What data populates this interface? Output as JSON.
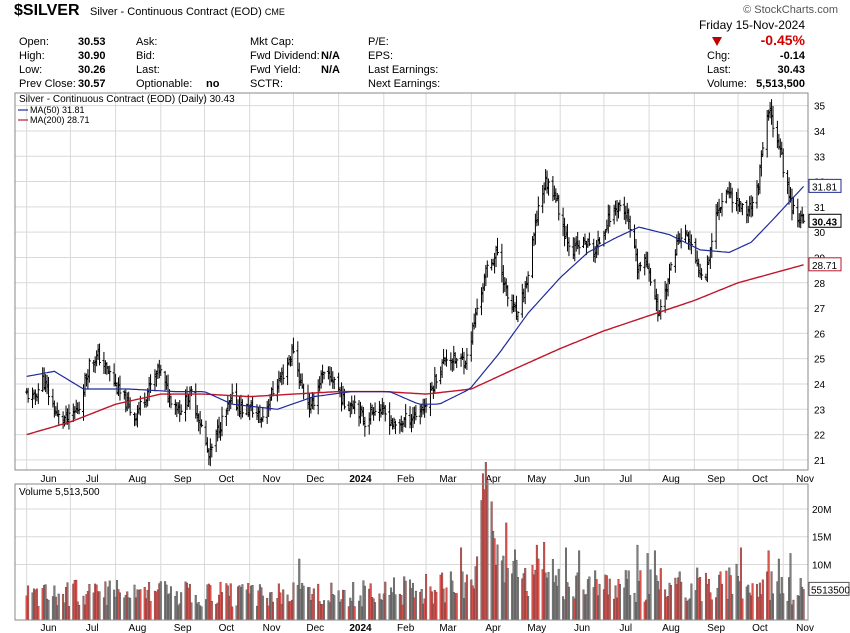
{
  "header": {
    "symbol": "$SILVER",
    "name": "Silver - Continuous Contract (EOD)",
    "exchange": "CME",
    "copyright": "© StockCharts.com",
    "date": "Friday  15-Nov-2024",
    "pct_change": "-0.45%",
    "chg_label": "Chg:",
    "chg_value": "-0.14",
    "last_label": "Last:",
    "last_value": "30.43",
    "volume_label": "Volume:",
    "volume_value": "5,513,500"
  },
  "quote": {
    "open_label": "Open:",
    "open": "30.53",
    "high_label": "High:",
    "high": "30.90",
    "low_label": "Low:",
    "low": "30.26",
    "prev_label": "Prev Close:",
    "prev": "30.57",
    "ask_label": "Ask:",
    "bid_label": "Bid:",
    "last_label": "Last:",
    "optionable_label": "Optionable:",
    "optionable": "no",
    "mktcap_label": "Mkt Cap:",
    "fwd_div_label": "Fwd Dividend:",
    "fwd_div": "N/A",
    "fwd_yield_label": "Fwd Yield:",
    "fwd_yield": "N/A",
    "sctr_label": "SCTR:",
    "pe_label": "P/E:",
    "eps_label": "EPS:",
    "last_earn_label": "Last Earnings:",
    "next_earn_label": "Next Earnings:"
  },
  "legend": {
    "price": "Silver - Continuous Contract (EOD) (Daily) 30.43",
    "ma50": "MA(50) 31.81",
    "ma200": "MA(200) 28.71",
    "volume": "Volume 5,513,500"
  },
  "colors": {
    "price": "#000000",
    "ma50": "#1f2a9c",
    "ma200": "#c0162a",
    "vol_up": "#d9534f",
    "vol_down": "#7f7f7f",
    "grid": "#d9d9d9"
  },
  "chart_data": [
    {
      "type": "ohlc",
      "title": "Silver - Continuous Contract (EOD) (Daily) 30.43",
      "ylim": [
        20.6,
        35.5
      ],
      "yticks": [
        21,
        22,
        23,
        24,
        25,
        26,
        27,
        28,
        29,
        30,
        31,
        32,
        33,
        34,
        35
      ],
      "xticks": [
        "Jun",
        "Jul",
        "Aug",
        "Sep",
        "Oct",
        "Nov",
        "Dec",
        "2024",
        "Feb",
        "Mar",
        "Apr",
        "May",
        "Jun",
        "Jul",
        "Aug",
        "Sep",
        "Oct",
        "Nov"
      ],
      "xtick_bold": "2024",
      "price_anchors": [
        [
          "2023-06-01",
          23.6
        ],
        [
          "2023-06-06",
          23.4
        ],
        [
          "2023-06-12",
          24.2
        ],
        [
          "2023-06-22",
          22.7
        ],
        [
          "2023-06-30",
          22.6
        ],
        [
          "2023-07-07",
          23.1
        ],
        [
          "2023-07-14",
          24.8
        ],
        [
          "2023-07-20",
          25.1
        ],
        [
          "2023-07-28",
          24.4
        ],
        [
          "2023-08-04",
          23.6
        ],
        [
          "2023-08-14",
          22.7
        ],
        [
          "2023-08-22",
          23.6
        ],
        [
          "2023-08-31",
          24.6
        ],
        [
          "2023-09-06",
          23.6
        ],
        [
          "2023-09-14",
          23.0
        ],
        [
          "2023-09-22",
          23.6
        ],
        [
          "2023-09-29",
          22.3
        ],
        [
          "2023-10-04",
          21.1
        ],
        [
          "2023-10-11",
          22.3
        ],
        [
          "2023-10-20",
          23.4
        ],
        [
          "2023-10-27",
          23.0
        ],
        [
          "2023-11-03",
          23.0
        ],
        [
          "2023-11-09",
          22.6
        ],
        [
          "2023-11-16",
          23.6
        ],
        [
          "2023-11-24",
          24.4
        ],
        [
          "2023-12-01",
          25.4
        ],
        [
          "2023-12-06",
          24.0
        ],
        [
          "2023-12-13",
          23.0
        ],
        [
          "2023-12-20",
          24.3
        ],
        [
          "2023-12-29",
          24.2
        ],
        [
          "2024-01-05",
          23.2
        ],
        [
          "2024-01-12",
          23.3
        ],
        [
          "2024-01-19",
          22.5
        ],
        [
          "2024-01-26",
          23.1
        ],
        [
          "2024-02-02",
          22.8
        ],
        [
          "2024-02-09",
          22.3
        ],
        [
          "2024-02-16",
          22.6
        ],
        [
          "2024-02-23",
          22.8
        ],
        [
          "2024-03-01",
          23.2
        ],
        [
          "2024-03-08",
          24.3
        ],
        [
          "2024-03-15",
          25.1
        ],
        [
          "2024-03-22",
          24.9
        ],
        [
          "2024-03-29",
          25.0
        ],
        [
          "2024-04-05",
          27.0
        ],
        [
          "2024-04-12",
          28.6
        ],
        [
          "2024-04-19",
          29.2
        ],
        [
          "2024-04-26",
          27.4
        ],
        [
          "2024-05-03",
          26.6
        ],
        [
          "2024-05-10",
          28.3
        ],
        [
          "2024-05-17",
          31.0
        ],
        [
          "2024-05-22",
          32.0
        ],
        [
          "2024-05-28",
          31.6
        ],
        [
          "2024-06-04",
          30.0
        ],
        [
          "2024-06-10",
          29.3
        ],
        [
          "2024-06-18",
          29.6
        ],
        [
          "2024-06-25",
          29.2
        ],
        [
          "2024-07-03",
          30.4
        ],
        [
          "2024-07-11",
          31.1
        ],
        [
          "2024-07-17",
          30.6
        ],
        [
          "2024-07-24",
          28.6
        ],
        [
          "2024-07-31",
          28.8
        ],
        [
          "2024-08-07",
          26.8
        ],
        [
          "2024-08-12",
          27.6
        ],
        [
          "2024-08-20",
          29.6
        ],
        [
          "2024-08-27",
          29.9
        ],
        [
          "2024-09-03",
          28.6
        ],
        [
          "2024-09-09",
          28.4
        ],
        [
          "2024-09-16",
          30.7
        ],
        [
          "2024-09-23",
          31.7
        ],
        [
          "2024-09-30",
          31.2
        ],
        [
          "2024-10-07",
          30.8
        ],
        [
          "2024-10-14",
          31.6
        ],
        [
          "2024-10-22",
          34.8
        ],
        [
          "2024-10-28",
          33.8
        ],
        [
          "2024-11-01",
          32.6
        ],
        [
          "2024-11-06",
          31.2
        ],
        [
          "2024-11-11",
          30.6
        ],
        [
          "2024-11-15",
          30.43
        ]
      ],
      "series": [
        {
          "name": "MA(50) 31.81",
          "anchors": [
            [
              "2023-06-01",
              24.3
            ],
            [
              "2023-06-20",
              24.5
            ],
            [
              "2023-07-10",
              23.8
            ],
            [
              "2023-08-10",
              23.8
            ],
            [
              "2023-09-10",
              23.7
            ],
            [
              "2023-10-01",
              23.7
            ],
            [
              "2023-10-20",
              23.2
            ],
            [
              "2023-11-20",
              23.0
            ],
            [
              "2023-12-15",
              23.5
            ],
            [
              "2024-01-10",
              23.7
            ],
            [
              "2024-02-05",
              23.7
            ],
            [
              "2024-02-25",
              23.2
            ],
            [
              "2024-03-10",
              23.2
            ],
            [
              "2024-03-31",
              23.8
            ],
            [
              "2024-04-20",
              25.2
            ],
            [
              "2024-05-10",
              26.8
            ],
            [
              "2024-06-01",
              28.2
            ],
            [
              "2024-06-20",
              29.2
            ],
            [
              "2024-07-10",
              29.8
            ],
            [
              "2024-07-25",
              30.2
            ],
            [
              "2024-08-15",
              29.9
            ],
            [
              "2024-09-05",
              29.3
            ],
            [
              "2024-09-25",
              29.2
            ],
            [
              "2024-10-10",
              29.6
            ],
            [
              "2024-10-25",
              30.5
            ],
            [
              "2024-11-15",
              31.81
            ]
          ]
        },
        {
          "name": "MA(200) 28.71",
          "anchors": [
            [
              "2023-06-01",
              22.0
            ],
            [
              "2023-07-01",
              22.5
            ],
            [
              "2023-08-01",
              23.2
            ],
            [
              "2023-09-01",
              23.6
            ],
            [
              "2023-10-01",
              23.6
            ],
            [
              "2023-11-01",
              23.5
            ],
            [
              "2023-12-01",
              23.6
            ],
            [
              "2024-01-01",
              23.7
            ],
            [
              "2024-02-01",
              23.7
            ],
            [
              "2024-03-01",
              23.6
            ],
            [
              "2024-04-01",
              23.8
            ],
            [
              "2024-05-01",
              24.6
            ],
            [
              "2024-06-01",
              25.4
            ],
            [
              "2024-07-01",
              26.1
            ],
            [
              "2024-08-01",
              26.7
            ],
            [
              "2024-09-01",
              27.3
            ],
            [
              "2024-10-01",
              28.0
            ],
            [
              "2024-11-15",
              28.71
            ]
          ]
        }
      ],
      "value_labels": {
        "ma50": "31.81",
        "last": "30.43",
        "ma200": "28.71"
      }
    },
    {
      "type": "bar",
      "title": "Volume 5,513,500",
      "yticks_labels": [
        "10M",
        "15M",
        "20M"
      ],
      "yticks": [
        10000000,
        15000000,
        20000000
      ],
      "ylim": [
        0,
        24500000
      ],
      "last_volume": 5513500,
      "last_label": "5513500",
      "volume_anchors": [
        [
          "2023-06-01",
          5500000
        ],
        [
          "2023-09-01",
          5200000
        ],
        [
          "2024-01-01",
          5000000
        ],
        [
          "2024-03-20",
          6500000
        ],
        [
          "2024-04-05",
          11000000
        ],
        [
          "2024-04-10",
          23500000
        ],
        [
          "2024-04-20",
          10000000
        ],
        [
          "2024-05-20",
          8500000
        ],
        [
          "2024-07-01",
          6500000
        ],
        [
          "2024-10-01",
          7500000
        ],
        [
          "2024-11-15",
          5513500
        ]
      ],
      "peaks": [
        [
          "2023-12-05",
          11000000
        ],
        [
          "2024-03-25",
          13000000
        ],
        [
          "2024-04-10",
          23500000
        ],
        [
          "2024-04-16",
          16000000
        ],
        [
          "2024-04-25",
          17500000
        ],
        [
          "2024-05-16",
          13500000
        ],
        [
          "2024-05-21",
          14000000
        ],
        [
          "2024-06-05",
          13000000
        ],
        [
          "2024-06-14",
          12500000
        ],
        [
          "2024-07-24",
          13500000
        ],
        [
          "2024-07-31",
          12000000
        ],
        [
          "2024-08-05",
          12500000
        ],
        [
          "2024-10-03",
          13000000
        ],
        [
          "2024-10-22",
          12500000
        ],
        [
          "2024-10-29",
          11000000
        ],
        [
          "2024-11-06",
          12000000
        ]
      ]
    }
  ]
}
